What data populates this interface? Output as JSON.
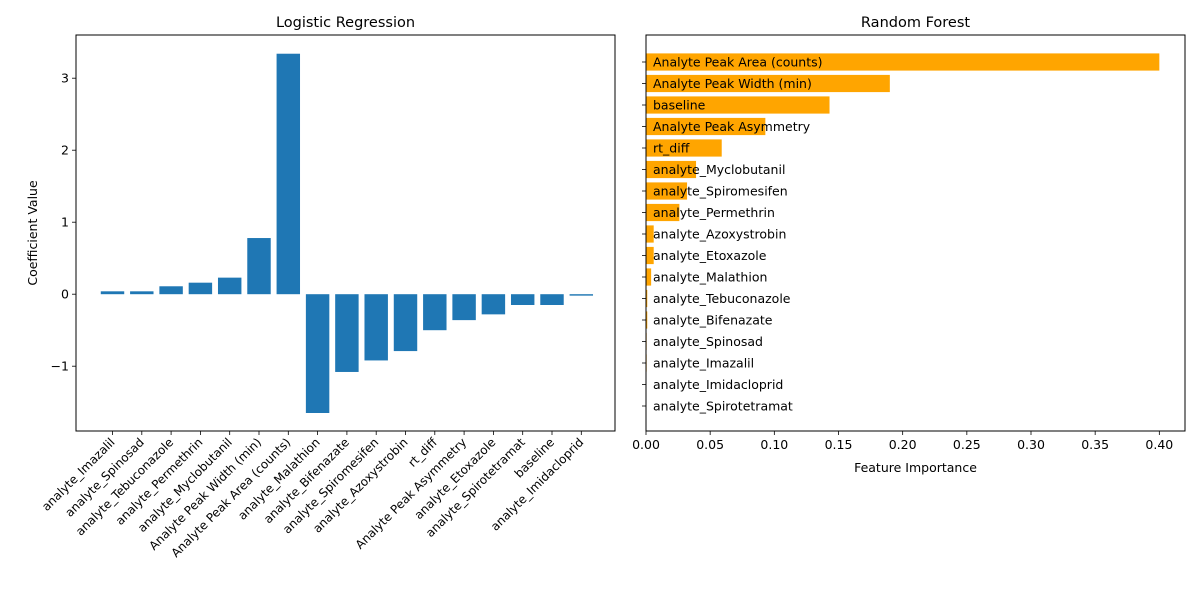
{
  "chart_data": [
    {
      "type": "bar",
      "title": "Logistic Regression",
      "xlabel": "",
      "ylabel": "Coefficient Value",
      "ylim": [
        -1.9,
        3.6
      ],
      "yticks": [
        -1,
        0,
        1,
        2,
        3
      ],
      "ytick_labels": [
        "−1",
        "0",
        "1",
        "2",
        "3"
      ],
      "color": "#1f77b4",
      "grid": false,
      "categories": [
        "analyte_Imazalil",
        "analyte_Spinosad",
        "analyte_Tebuconazole",
        "analyte_Permethrin",
        "analyte_Myclobutanil",
        "Analyte Peak Width (min)",
        "Analyte Peak Area (counts)",
        "analyte_Malathion",
        "analyte_Bifenazate",
        "analyte_Spiromesifen",
        "analyte_Azoxystrobin",
        "rt_diff",
        "Analyte Peak Asymmetry",
        "analyte_Etoxazole",
        "analyte_Spirotetramat",
        "baseline",
        "analyte_Imidacloprid"
      ],
      "values": [
        0.04,
        0.04,
        0.11,
        0.16,
        0.23,
        0.78,
        3.34,
        -1.65,
        -1.08,
        -0.92,
        -0.79,
        -0.5,
        -0.36,
        -0.28,
        -0.15,
        -0.15,
        -0.02
      ]
    },
    {
      "type": "barh",
      "title": "Random Forest",
      "xlabel": "Feature Importance",
      "ylabel": "",
      "xlim": [
        0,
        0.42
      ],
      "xticks": [
        0.0,
        0.05,
        0.1,
        0.15,
        0.2,
        0.25,
        0.3,
        0.35,
        0.4
      ],
      "xtick_labels": [
        "0.00",
        "0.05",
        "0.10",
        "0.15",
        "0.20",
        "0.25",
        "0.30",
        "0.35",
        "0.40"
      ],
      "color": "#ffa500",
      "grid": false,
      "categories": [
        "Analyte Peak Area (counts)",
        "Analyte Peak Width (min)",
        "baseline",
        "Analyte Peak Asymmetry",
        "rt_diff",
        "analyte_Myclobutanil",
        "analyte_Spiromesifen",
        "analyte_Permethrin",
        "analyte_Azoxystrobin",
        "analyte_Etoxazole",
        "analyte_Malathion",
        "analyte_Tebuconazole",
        "analyte_Bifenazate",
        "analyte_Spinosad",
        "analyte_Imazalil",
        "analyte_Imidacloprid",
        "analyte_Spirotetramat"
      ],
      "values": [
        0.4,
        0.19,
        0.143,
        0.093,
        0.059,
        0.039,
        0.032,
        0.026,
        0.006,
        0.006,
        0.004,
        0.001,
        0.001,
        0.0005,
        0.0005,
        0.0003,
        0.0003
      ]
    }
  ]
}
